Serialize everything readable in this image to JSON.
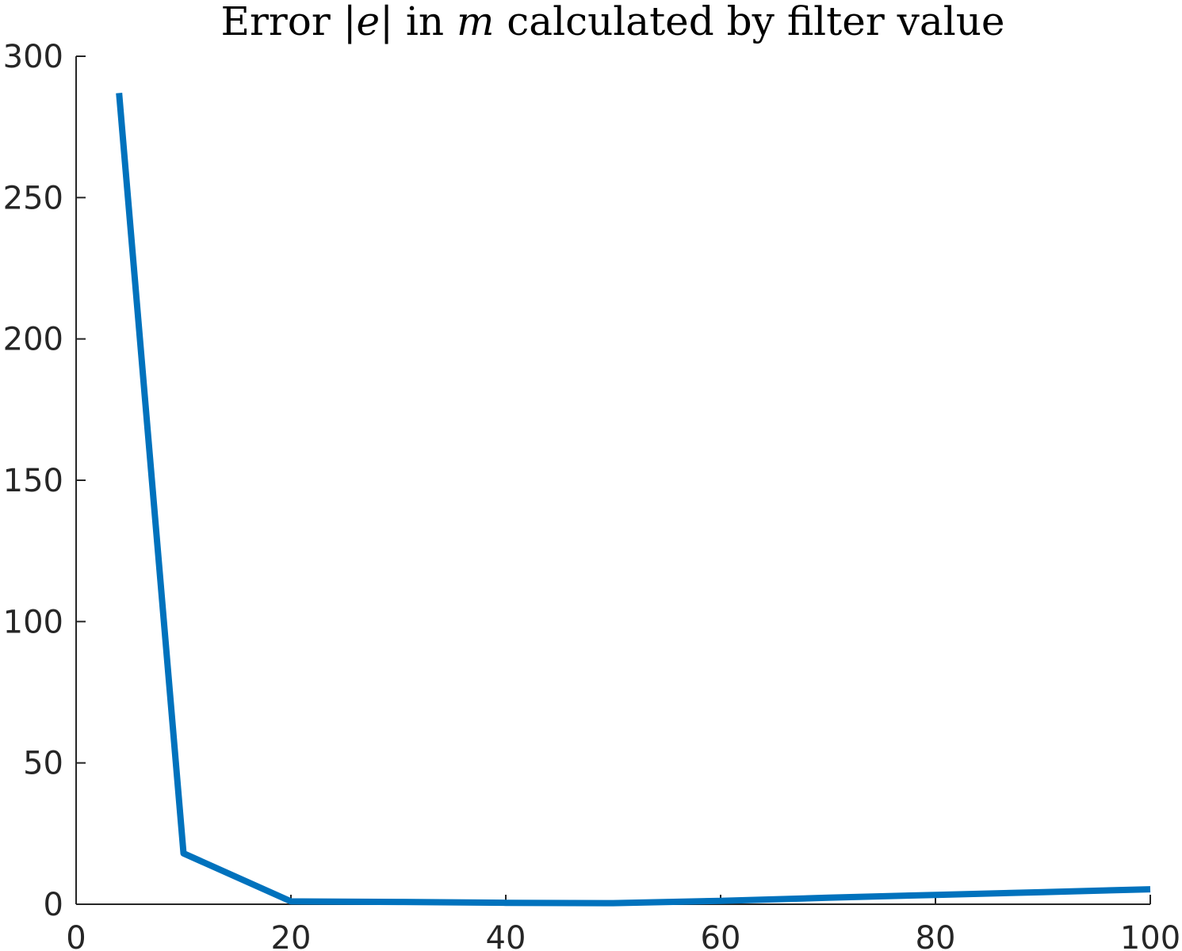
{
  "chart_data": {
    "type": "line",
    "title": "Error |e| in m calculated by filter value",
    "xlabel": "",
    "ylabel": "",
    "xlim": [
      0,
      100
    ],
    "ylim": [
      0,
      300
    ],
    "xticks": [
      0,
      20,
      40,
      60,
      80,
      100
    ],
    "yticks": [
      0,
      50,
      100,
      150,
      200,
      250,
      300
    ],
    "grid": false,
    "series": [
      {
        "color": "#0072BD",
        "x": [
          4,
          10,
          20,
          30,
          40,
          50,
          60,
          70,
          80,
          90,
          100
        ],
        "y": [
          287,
          18,
          1,
          0.8,
          0.5,
          0.4,
          1.2,
          2.3,
          3.3,
          4.3,
          5.3
        ]
      }
    ]
  }
}
